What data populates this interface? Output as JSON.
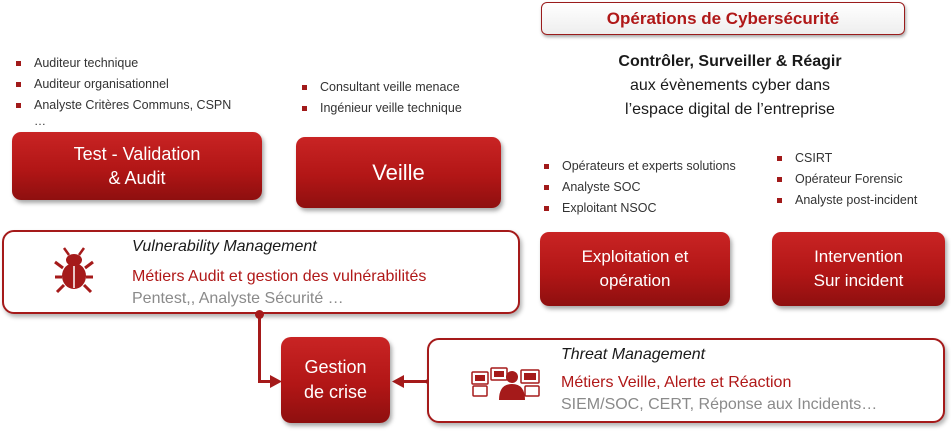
{
  "header": {
    "title": "Opérations de Cybersécurité",
    "tagline_bold": "Contrôler, Surveiller & Réagir",
    "tagline_line2": "aux évènements cyber dans",
    "tagline_line3": "l’espace digital de l’entreprise"
  },
  "test_audit": {
    "roles": [
      "Auditeur technique",
      "Auditeur organisationnel",
      "Analyste  Critères Communs, CSPN"
    ],
    "ellipsis": "…",
    "box_line1": "Test - Validation",
    "box_line2": "& Audit"
  },
  "veille": {
    "roles": [
      "Consultant veille menace",
      "Ingénieur veille technique"
    ],
    "box_label": "Veille"
  },
  "exploitation": {
    "roles": [
      "Opérateurs et experts solutions",
      "Analyste  SOC",
      "Exploitant NSOC"
    ],
    "box_line1": "Exploitation et",
    "box_line2": "opération"
  },
  "intervention": {
    "roles": [
      "CSIRT",
      "Opérateur Forensic",
      "Analyste post-incident"
    ],
    "box_line1": "Intervention",
    "box_line2": "Sur incident"
  },
  "vulnerability": {
    "title": "Vulnerability Management",
    "metier": "Métiers Audit et gestion des vulnérabilités",
    "text": "Pentest,, Analyste Sécurité …",
    "icon": "bug-icon"
  },
  "gestion": {
    "line1": "Gestion",
    "line2": "de crise"
  },
  "threat": {
    "title": "Threat Management",
    "metier": "Métiers Veille, Alerte et Réaction",
    "text": "SIEM/SOC, CERT, Réponse aux Incidents…",
    "icon": "operator-monitors-icon"
  },
  "colors": {
    "accent": "#b01818",
    "dark_red": "#8e0f0f",
    "muted_text": "#8a8a8a"
  }
}
